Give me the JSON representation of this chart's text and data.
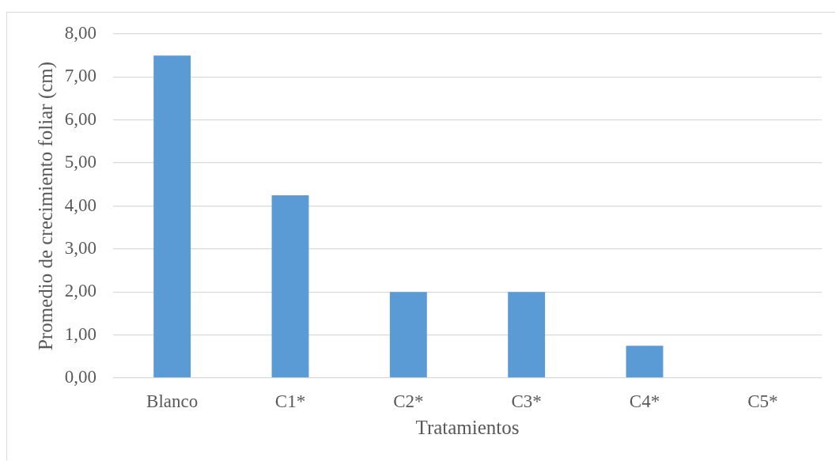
{
  "chart_data": {
    "type": "bar",
    "xlabel": "Tratamientos",
    "ylabel": "Promedio de crecimiento foliar (cm)",
    "categories": [
      "Blanco",
      "C1*",
      "C2*",
      "C3*",
      "C4*",
      "C5*"
    ],
    "values": [
      7.5,
      4.25,
      2,
      2,
      0.75,
      0
    ],
    "color": "#5b9bd5",
    "ylim": [
      0,
      8
    ],
    "yticks": [
      {
        "value": 0,
        "label": "0,00"
      },
      {
        "value": 1,
        "label": "1,00"
      },
      {
        "value": 2,
        "label": "2,00"
      },
      {
        "value": 3,
        "label": "3,00"
      },
      {
        "value": 4,
        "label": "4,00"
      },
      {
        "value": 5,
        "label": "5,00"
      },
      {
        "value": 6,
        "label": "6,00"
      },
      {
        "value": 7,
        "label": "7,00"
      },
      {
        "value": 8,
        "label": "8,00"
      }
    ],
    "grid": "y"
  }
}
